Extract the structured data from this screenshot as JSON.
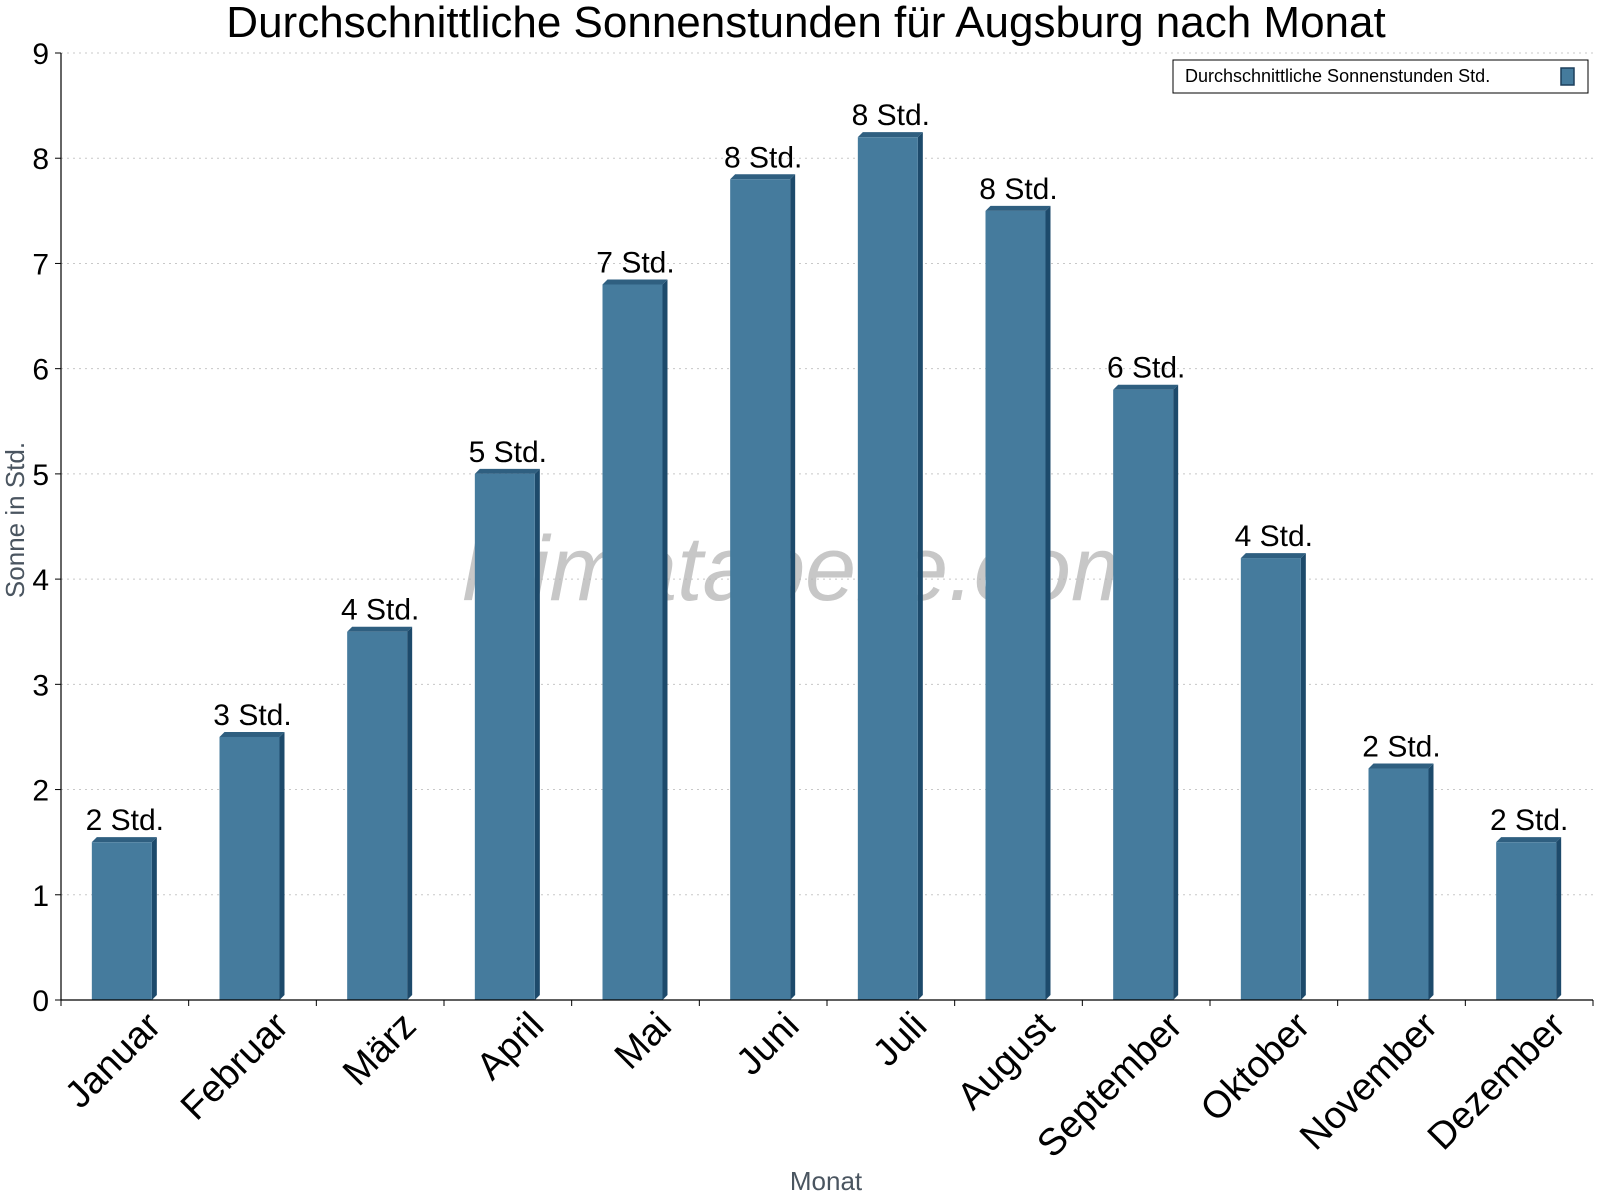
{
  "chart_data": {
    "type": "bar",
    "title": "Durchschnittliche Sonnenstunden für Augsburg nach Monat",
    "xlabel": "Monat",
    "ylabel": "Sonne in Std.",
    "ylim": [
      0,
      9
    ],
    "yticks": [
      "0",
      "1",
      "2",
      "3",
      "4",
      "5",
      "6",
      "7",
      "8",
      "9"
    ],
    "grid": true,
    "legend_position": "top-right",
    "categories": [
      "Januar",
      "Februar",
      "März",
      "April",
      "Mai",
      "Juni",
      "Juli",
      "August",
      "September",
      "Oktober",
      "November",
      "Dezember"
    ],
    "series": [
      {
        "name": "Durchschnittliche Sonnenstunden Std.",
        "color": "#457b9d",
        "values": [
          1.5,
          2.5,
          3.5,
          5.0,
          6.8,
          7.8,
          8.2,
          7.5,
          5.8,
          4.2,
          2.2,
          1.5
        ],
        "labels": [
          "2 Std.",
          "3 Std.",
          "4 Std.",
          "5 Std.",
          "7 Std.",
          "8 Std.",
          "8 Std.",
          "8 Std.",
          "6 Std.",
          "4 Std.",
          "2 Std.",
          "2 Std."
        ]
      }
    ]
  },
  "watermark": "klimatabelle.com"
}
